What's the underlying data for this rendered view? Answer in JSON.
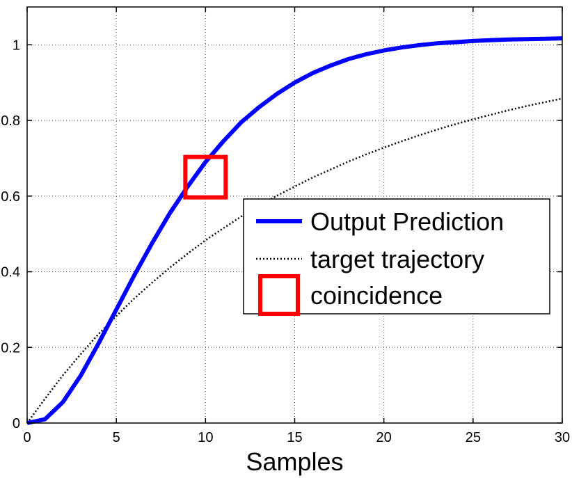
{
  "colors": {
    "prediction": "#0000ff",
    "target": "#000000",
    "coincidence": "#ff0000",
    "grid": "#555555"
  },
  "chart_data": {
    "type": "line",
    "title": "",
    "xlabel": "Samples",
    "ylabel": "",
    "xlim": [
      0,
      30
    ],
    "ylim": [
      0,
      1.1
    ],
    "x_ticks": [
      0,
      5,
      10,
      15,
      20,
      25,
      30
    ],
    "x_tick_labels": [
      "0",
      "5",
      "10",
      "15",
      "20",
      "25",
      "30"
    ],
    "y_ticks": [
      0,
      0.2,
      0.4,
      0.6,
      0.8,
      1
    ],
    "y_tick_labels": [
      "0",
      "0.2",
      "0.4",
      "0.6",
      "0.8",
      "1"
    ],
    "grid": true,
    "legend_placement": "center-right",
    "x": [
      0,
      1,
      2,
      3,
      4,
      5,
      6,
      7,
      8,
      9,
      10,
      11,
      12,
      13,
      14,
      15,
      16,
      17,
      18,
      19,
      20,
      21,
      22,
      23,
      24,
      25,
      26,
      27,
      28,
      29,
      30
    ],
    "series": [
      {
        "name": "Output Prediction",
        "style": "solid",
        "values": [
          0.0,
          0.01,
          0.055,
          0.125,
          0.21,
          0.3,
          0.39,
          0.475,
          0.555,
          0.625,
          0.69,
          0.745,
          0.795,
          0.835,
          0.87,
          0.9,
          0.925,
          0.945,
          0.962,
          0.975,
          0.985,
          0.993,
          0.999,
          1.004,
          1.007,
          1.01,
          1.012,
          1.014,
          1.015,
          1.016,
          1.017
        ]
      },
      {
        "name": "target trajectory",
        "style": "dotted",
        "values": [
          0.0,
          0.064,
          0.126,
          0.182,
          0.235,
          0.283,
          0.329,
          0.371,
          0.411,
          0.448,
          0.483,
          0.515,
          0.546,
          0.574,
          0.601,
          0.625,
          0.649,
          0.67,
          0.691,
          0.71,
          0.728,
          0.745,
          0.761,
          0.776,
          0.79,
          0.803,
          0.815,
          0.827,
          0.838,
          0.848,
          0.858
        ]
      }
    ],
    "markers": [
      {
        "name": "coincidence",
        "shape": "square",
        "x": 10,
        "y": 0.65
      }
    ]
  }
}
